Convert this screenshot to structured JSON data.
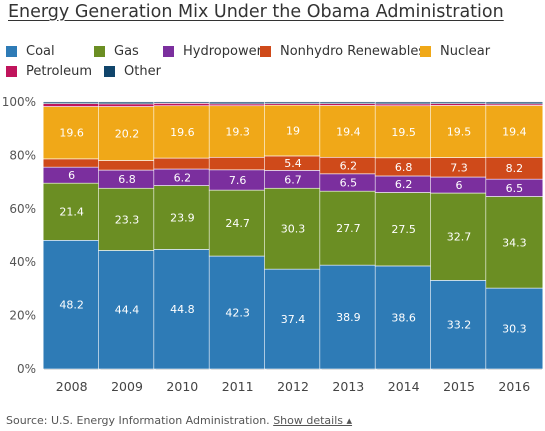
{
  "title": "Energy Generation Mix Under the Obama Administration",
  "footer": {
    "source": "Source: U.S. Energy Information Administration.",
    "details_link": "Show details",
    "details_arrow": "▴"
  },
  "chart_data": {
    "type": "bar",
    "stacked": true,
    "title": "Energy Generation Mix Under the Obama Administration",
    "xlabel": "",
    "ylabel": "",
    "ylim": [
      0,
      100
    ],
    "y_ticks": [
      "0%",
      "20%",
      "40%",
      "60%",
      "80%",
      "100%"
    ],
    "grid": true,
    "legend_position": "top",
    "categories": [
      "2008",
      "2009",
      "2010",
      "2011",
      "2012",
      "2013",
      "2014",
      "2015",
      "2016"
    ],
    "series": [
      {
        "name": "Coal",
        "color": "#2e7bb6",
        "values": [
          48.2,
          44.4,
          44.8,
          42.3,
          37.4,
          38.9,
          38.6,
          33.2,
          30.3
        ]
      },
      {
        "name": "Gas",
        "color": "#6b8e23",
        "values": [
          21.4,
          23.3,
          23.9,
          24.7,
          30.3,
          27.7,
          27.5,
          32.7,
          34.3
        ]
      },
      {
        "name": "Hydropower",
        "color": "#7b2f9e",
        "values": [
          6,
          6.8,
          6.2,
          7.6,
          6.7,
          6.5,
          6.2,
          6,
          6.5
        ]
      },
      {
        "name": "Nonhydro Renewables",
        "color": "#cf4a1a",
        "values": [
          3.1,
          3.6,
          4.1,
          4.7,
          5.4,
          6.2,
          6.8,
          7.3,
          8.2
        ]
      },
      {
        "name": "Nuclear",
        "color": "#f0a818",
        "values": [
          19.6,
          20.2,
          19.6,
          19.3,
          19,
          19.4,
          19.5,
          19.5,
          19.4
        ]
      },
      {
        "name": "Petroleum",
        "color": "#c0145c",
        "values": [
          1.1,
          1,
          0.9,
          0.7,
          0.6,
          0.7,
          0.7,
          0.7,
          0.6
        ]
      },
      {
        "name": "Other",
        "color": "#10456b",
        "values": [
          0.6,
          0.7,
          0.5,
          0.7,
          0.6,
          0.6,
          0.7,
          0.6,
          0.7
        ]
      }
    ],
    "data_labels": {
      "Coal": [
        "48.2",
        "44.4",
        "44.8",
        "42.3",
        "37.4",
        "38.9",
        "38.6",
        "33.2",
        "30.3"
      ],
      "Gas": [
        "21.4",
        "23.3",
        "23.9",
        "24.7",
        "30.3",
        "27.7",
        "27.5",
        "32.7",
        "34.3"
      ],
      "Hydropower": [
        "6",
        "6.8",
        "6.2",
        "7.6",
        "6.7",
        "6.5",
        "6.2",
        "6",
        "6.5"
      ],
      "Nonhydro Renewables": [
        "",
        "",
        "",
        "",
        "5.4",
        "6.2",
        "6.8",
        "7.3",
        "8.2"
      ],
      "Nuclear": [
        "19.6",
        "20.2",
        "19.6",
        "19.3",
        "19",
        "19.4",
        "19.5",
        "19.5",
        "19.4"
      ]
    }
  }
}
